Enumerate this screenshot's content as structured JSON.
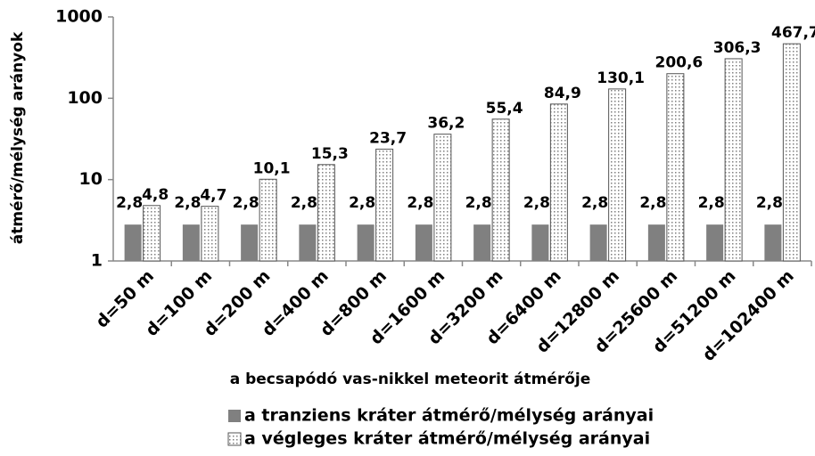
{
  "chart_data": {
    "type": "bar",
    "x_label": "a becsapódó vas-nikkel meteorit átmérője",
    "y_label": "átmérő/mélység arányok",
    "categories": [
      "d=50 m",
      "d=100 m",
      "d=200 m",
      "d=400 m",
      "d=800 m",
      "d=1600 m",
      "d=3200 m",
      "d=6400 m",
      "d=12800 m",
      "d=25600 m",
      "d=51200 m",
      "d=102400 m"
    ],
    "series": [
      {
        "name": "a tranziens kráter átmérő/mélység arányai",
        "color": "#808080",
        "pattern": "solid",
        "values": [
          2.8,
          2.8,
          2.8,
          2.8,
          2.8,
          2.8,
          2.8,
          2.8,
          2.8,
          2.8,
          2.8,
          2.8
        ],
        "value_labels": [
          "2,8",
          "2,8",
          "2,8",
          "2,8",
          "2,8",
          "2,8",
          "2,8",
          "2,8",
          "2,8",
          "2,8",
          "2,8",
          "2,8"
        ]
      },
      {
        "name": "a végleges kráter átmérő/mélység arányai",
        "color": "#808080",
        "pattern": "dots",
        "values": [
          4.8,
          4.7,
          10.1,
          15.3,
          23.7,
          36.2,
          55.4,
          84.9,
          130.1,
          200.6,
          306.3,
          467.7
        ],
        "value_labels": [
          "4,8",
          "4,7",
          "10,1",
          "15,3",
          "23,7",
          "36,2",
          "55,4",
          "84,9",
          "130,1",
          "200,6",
          "306,3",
          "467,7"
        ]
      }
    ],
    "ylim": [
      1,
      1000
    ],
    "yticks": [
      1,
      10,
      100,
      1000
    ],
    "log_y": true,
    "grid": false,
    "legend": "bottom"
  }
}
